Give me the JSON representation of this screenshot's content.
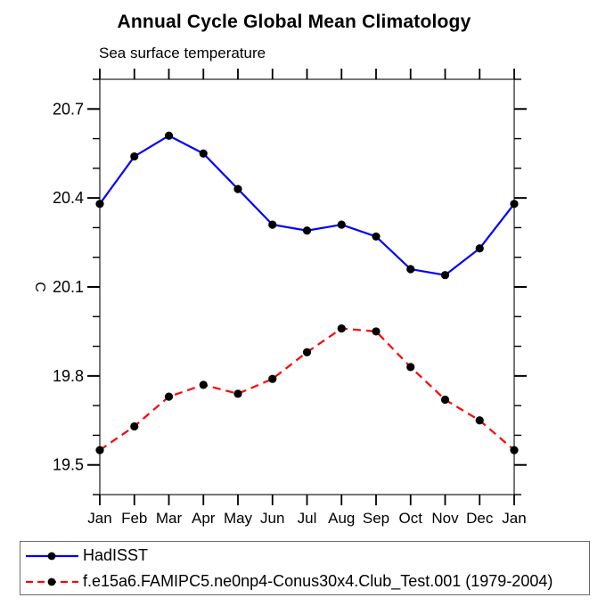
{
  "chart_data": {
    "type": "line",
    "title": "Annual Cycle Global Mean Climatology",
    "subtitle": "Sea surface temperature",
    "ylabel": "C",
    "categories": [
      "Jan",
      "Feb",
      "Mar",
      "Apr",
      "May",
      "Jun",
      "Jul",
      "Aug",
      "Sep",
      "Oct",
      "Nov",
      "Dec",
      "Jan"
    ],
    "series": [
      {
        "name": "HadISST",
        "color": "#0000ff",
        "line_style": "solid",
        "marker": "circle",
        "marker_color": "#000000",
        "values": [
          20.38,
          20.54,
          20.61,
          20.55,
          20.43,
          20.31,
          20.29,
          20.31,
          20.27,
          20.16,
          20.14,
          20.23,
          20.38
        ]
      },
      {
        "name": "f.e15a6.FAMIPC5.ne0np4-Conus30x4.Club_Test.001 (1979-2004)",
        "color": "#ff0000",
        "line_style": "dashed",
        "marker": "circle",
        "marker_color": "#000000",
        "values": [
          19.55,
          19.63,
          19.73,
          19.77,
          19.74,
          19.79,
          19.88,
          19.96,
          19.95,
          19.83,
          19.72,
          19.65,
          19.55
        ]
      }
    ],
    "ylim": [
      19.4,
      20.8
    ],
    "y_major_ticks": [
      19.5,
      19.8,
      20.1,
      20.4,
      20.7
    ],
    "y_minor_step": 0.1,
    "grid": false,
    "legend_position": "bottom-left-box"
  }
}
